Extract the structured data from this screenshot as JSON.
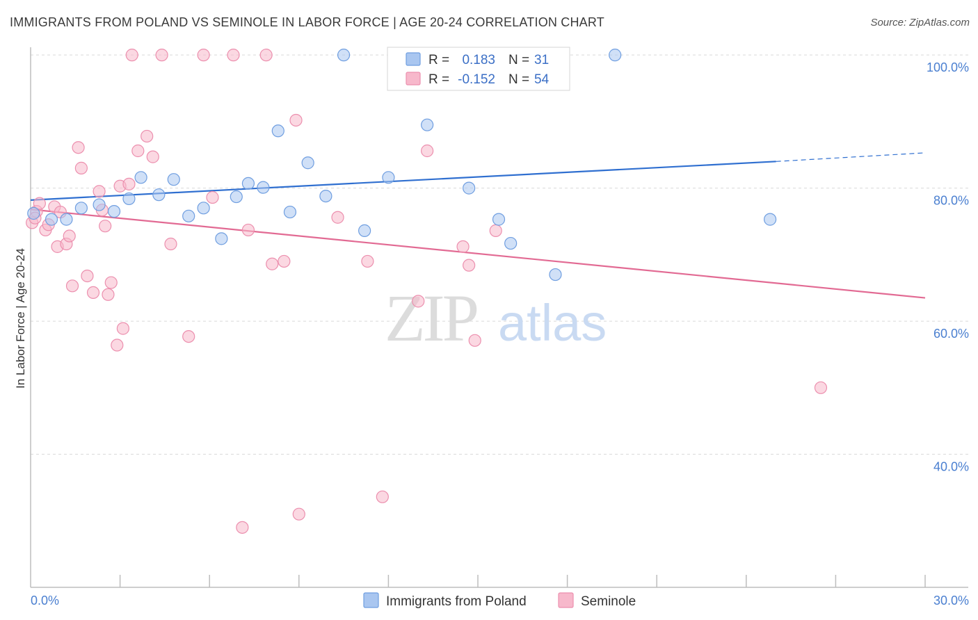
{
  "title": "IMMIGRANTS FROM POLAND VS SEMINOLE IN LABOR FORCE | AGE 20-24 CORRELATION CHART",
  "source": "Source: ZipAtlas.com",
  "watermark": {
    "zip": "ZIP",
    "atlas": "atlas"
  },
  "chart_data": {
    "type": "scatter",
    "ylabel": "In Labor Force | Age 20-24",
    "xlim": [
      0,
      30
    ],
    "ylim": [
      20,
      102
    ],
    "x_tick_labels": [
      {
        "value": 0,
        "label": "0.0%"
      },
      {
        "value": 30,
        "label": "30.0%"
      }
    ],
    "y_tick_labels": [
      {
        "value": 100,
        "label": "100.0%"
      },
      {
        "value": 80,
        "label": "80.0%"
      },
      {
        "value": 60,
        "label": "60.0%"
      },
      {
        "value": 40,
        "label": "40.0%"
      }
    ],
    "y_gridlines": [
      40,
      60,
      80,
      100
    ],
    "x_minor_ticks": [
      3,
      6,
      9,
      12,
      15,
      18,
      21,
      24,
      27
    ],
    "grid": true,
    "legend_position": "top-center",
    "stats": [
      {
        "r_label": "R =",
        "r": "0.183",
        "n_label": "N =",
        "n": "31",
        "color": "#a9c6f0",
        "stroke": "#6f9ee0"
      },
      {
        "r_label": "R =",
        "r": "-0.152",
        "n_label": "N =",
        "n": "54",
        "color": "#f7b8cb",
        "stroke": "#ec8fae"
      }
    ],
    "series": [
      {
        "name": "Immigrants from Poland",
        "color": "#a9c6f0",
        "stroke": "#6f9ee0",
        "trend_color": "#2f6fd0",
        "trend": {
          "x0": 0,
          "y0": 78.2,
          "x1": 25.0,
          "y1": 84.0,
          "dash_to_x": 30,
          "dash_to_y": 85.3
        },
        "points": [
          [
            0.1,
            76.2
          ],
          [
            0.7,
            75.3
          ],
          [
            1.2,
            75.3
          ],
          [
            1.7,
            77.0
          ],
          [
            2.3,
            77.5
          ],
          [
            2.8,
            76.5
          ],
          [
            3.3,
            78.4
          ],
          [
            3.7,
            81.6
          ],
          [
            4.3,
            79.0
          ],
          [
            4.8,
            81.3
          ],
          [
            5.3,
            75.8
          ],
          [
            5.8,
            77.0
          ],
          [
            6.4,
            72.4
          ],
          [
            6.9,
            78.7
          ],
          [
            7.3,
            80.7
          ],
          [
            7.8,
            80.1
          ],
          [
            8.3,
            88.6
          ],
          [
            8.7,
            76.4
          ],
          [
            9.3,
            83.8
          ],
          [
            9.9,
            78.8
          ],
          [
            10.5,
            100
          ],
          [
            11.2,
            73.6
          ],
          [
            12.0,
            81.6
          ],
          [
            12.3,
            100
          ],
          [
            13.3,
            89.5
          ],
          [
            14.7,
            80.0
          ],
          [
            15.7,
            75.3
          ],
          [
            16.1,
            71.7
          ],
          [
            17.6,
            67.0
          ],
          [
            19.6,
            100
          ],
          [
            24.8,
            75.3
          ]
        ]
      },
      {
        "name": "Seminole",
        "color": "#f7b8cb",
        "stroke": "#ec8fae",
        "trend_color": "#e26a93",
        "trend": {
          "x0": 0,
          "y0": 76.8,
          "x1": 30,
          "y1": 63.5
        },
        "points": [
          [
            0.05,
            74.8
          ],
          [
            0.2,
            76.5
          ],
          [
            0.3,
            77.7
          ],
          [
            0.5,
            73.7
          ],
          [
            0.6,
            74.5
          ],
          [
            0.8,
            77.2
          ],
          [
            0.9,
            71.2
          ],
          [
            1.0,
            76.4
          ],
          [
            1.2,
            71.6
          ],
          [
            1.3,
            72.8
          ],
          [
            1.4,
            65.3
          ],
          [
            1.6,
            86.1
          ],
          [
            1.7,
            83.0
          ],
          [
            1.9,
            66.8
          ],
          [
            2.1,
            64.3
          ],
          [
            2.3,
            79.5
          ],
          [
            2.4,
            76.7
          ],
          [
            2.5,
            74.3
          ],
          [
            2.6,
            64.0
          ],
          [
            2.7,
            65.8
          ],
          [
            2.9,
            56.4
          ],
          [
            3.0,
            80.3
          ],
          [
            3.1,
            58.9
          ],
          [
            3.3,
            80.6
          ],
          [
            3.4,
            100
          ],
          [
            3.6,
            85.6
          ],
          [
            3.9,
            87.8
          ],
          [
            4.1,
            84.7
          ],
          [
            4.4,
            100
          ],
          [
            4.7,
            71.6
          ],
          [
            5.3,
            57.7
          ],
          [
            5.8,
            100
          ],
          [
            6.1,
            78.6
          ],
          [
            6.8,
            100
          ],
          [
            7.1,
            29.0
          ],
          [
            7.3,
            73.7
          ],
          [
            7.9,
            100
          ],
          [
            8.1,
            68.6
          ],
          [
            8.5,
            69.0
          ],
          [
            8.9,
            90.2
          ],
          [
            9.0,
            31.0
          ],
          [
            10.3,
            75.6
          ],
          [
            11.3,
            69.0
          ],
          [
            11.8,
            33.6
          ],
          [
            13.0,
            63.0
          ],
          [
            13.3,
            85.6
          ],
          [
            14.5,
            71.2
          ],
          [
            14.7,
            68.4
          ],
          [
            14.9,
            57.1
          ],
          [
            15.6,
            73.6
          ],
          [
            16.5,
            100
          ],
          [
            16.8,
            100
          ],
          [
            26.5,
            50.0
          ],
          [
            0.15,
            75.5
          ]
        ]
      }
    ]
  }
}
